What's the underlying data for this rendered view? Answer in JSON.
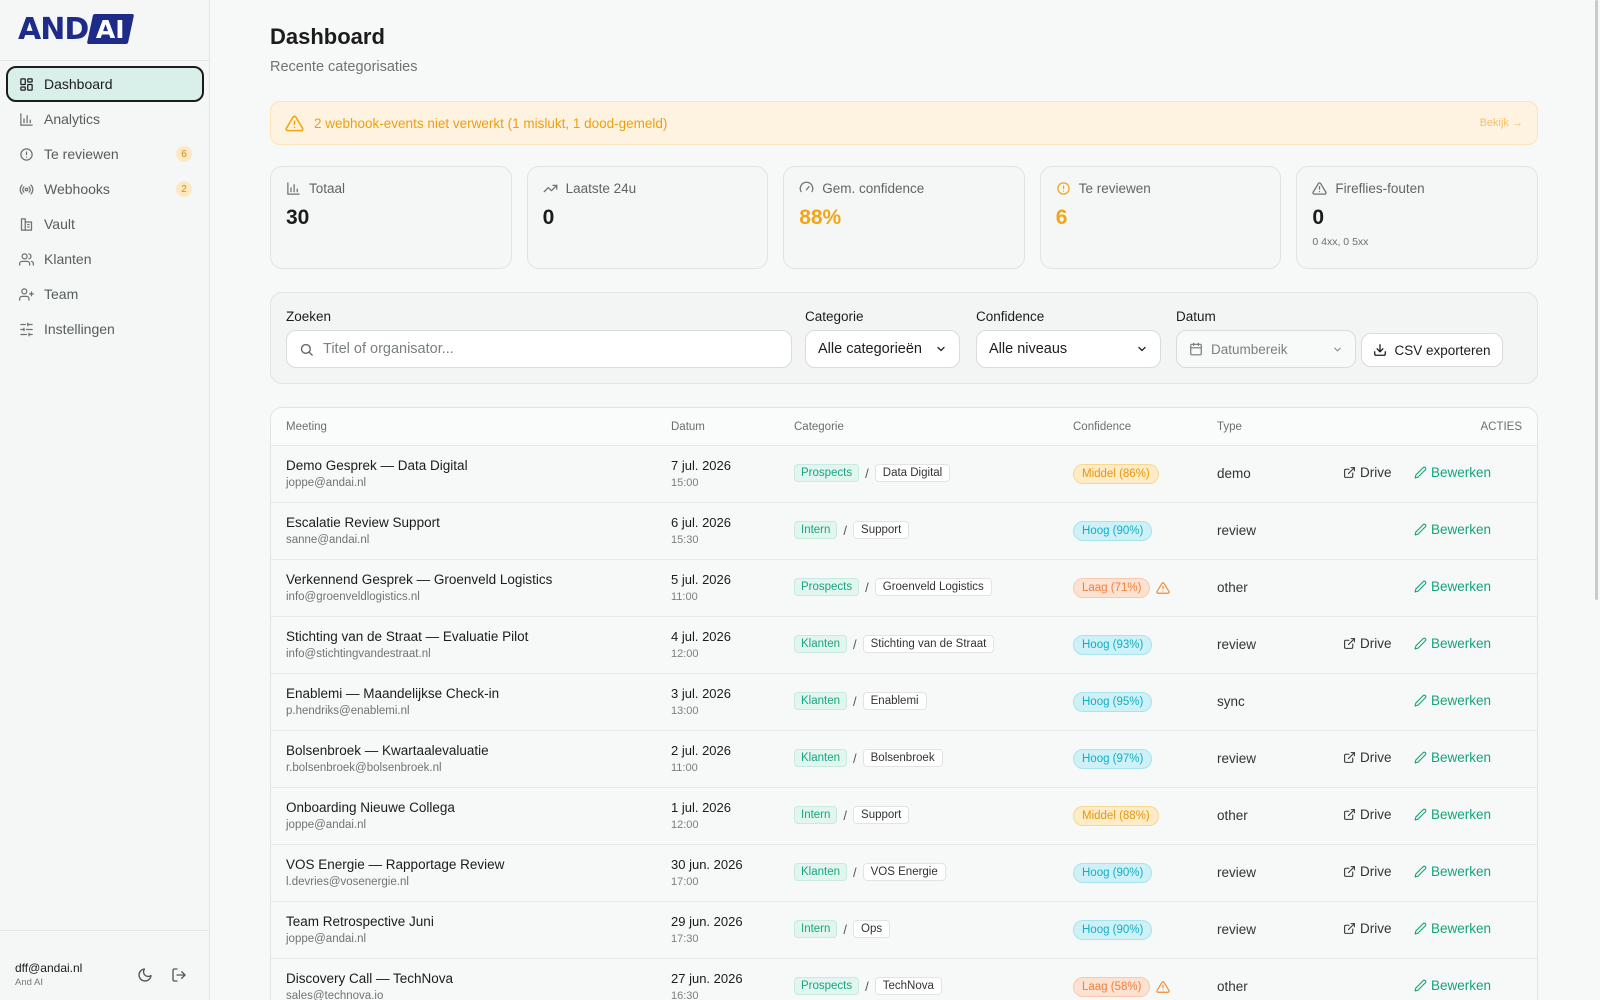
{
  "brand": {
    "and": "AND",
    "ai": "AI"
  },
  "nav": [
    {
      "label": "Dashboard",
      "icon": "grid-icon",
      "active": true,
      "badge": null
    },
    {
      "label": "Analytics",
      "icon": "bar-chart-icon",
      "active": false,
      "badge": null
    },
    {
      "label": "Te reviewen",
      "icon": "alert-circle-icon",
      "active": false,
      "badge": "6"
    },
    {
      "label": "Webhooks",
      "icon": "broadcast-icon",
      "active": false,
      "badge": "2"
    },
    {
      "label": "Vault",
      "icon": "vault-icon",
      "active": false,
      "badge": null
    },
    {
      "label": "Klanten",
      "icon": "users-icon",
      "active": false,
      "badge": null
    },
    {
      "label": "Team",
      "icon": "user-plus-icon",
      "active": false,
      "badge": null
    },
    {
      "label": "Instellingen",
      "icon": "sliders-icon",
      "active": false,
      "badge": null
    }
  ],
  "user": {
    "email": "dff@andai.nl",
    "org": "And AI"
  },
  "page": {
    "title": "Dashboard",
    "subtitle": "Recente categorisaties"
  },
  "alert": {
    "text": "2 webhook-events niet verwerkt (1 mislukt, 1 dood-gemeld)",
    "link": "Bekijk →"
  },
  "stats": [
    {
      "label": "Totaal",
      "value": "30",
      "sub": "",
      "amber": false,
      "icon": "bar-chart-icon"
    },
    {
      "label": "Laatste 24u",
      "value": "0",
      "sub": "",
      "amber": false,
      "icon": "trend-up-icon"
    },
    {
      "label": "Gem. confidence",
      "value": "88%",
      "sub": "",
      "amber": true,
      "icon": "gauge-icon"
    },
    {
      "label": "Te reviewen",
      "value": "6",
      "sub": "",
      "amber": true,
      "icon": "alert-circle-icon"
    },
    {
      "label": "Fireflies-fouten",
      "value": "0",
      "sub": "0 4xx, 0 5xx",
      "amber": false,
      "icon": "warning-triangle-icon"
    }
  ],
  "filters": {
    "search_label": "Zoeken",
    "search_placeholder": "Titel of organisator...",
    "category_label": "Categorie",
    "category_value": "Alle categorieën",
    "confidence_label": "Confidence",
    "confidence_value": "Alle niveaus",
    "date_label": "Datum",
    "date_placeholder": "Datumbereik",
    "csv_label": "CSV exporteren"
  },
  "table": {
    "headers": {
      "meeting": "Meeting",
      "date": "Datum",
      "category": "Categorie",
      "confidence": "Confidence",
      "type": "Type",
      "actions": "ACTIES"
    },
    "drive_label": "Drive",
    "edit_label": "Bewerken",
    "rows": [
      {
        "title": "Demo Gesprek — Data Digital",
        "email": "joppe@andai.nl",
        "date": "7 jul. 2026",
        "time": "15:00",
        "cat": "Prospects",
        "sub": "Data Digital",
        "conf": "Middel (86%)",
        "level": "mid",
        "warn": false,
        "type": "demo",
        "drive": true
      },
      {
        "title": "Escalatie Review Support",
        "email": "sanne@andai.nl",
        "date": "6 jul. 2026",
        "time": "15:30",
        "cat": "Intern",
        "sub": "Support",
        "conf": "Hoog (90%)",
        "level": "high",
        "warn": false,
        "type": "review",
        "drive": false
      },
      {
        "title": "Verkennend Gesprek — Groenveld Logistics",
        "email": "info@groenveldlogistics.nl",
        "date": "5 jul. 2026",
        "time": "11:00",
        "cat": "Prospects",
        "sub": "Groenveld Logistics",
        "conf": "Laag (71%)",
        "level": "low",
        "warn": true,
        "type": "other",
        "drive": false
      },
      {
        "title": "Stichting van de Straat — Evaluatie Pilot",
        "email": "info@stichtingvandestraat.nl",
        "date": "4 jul. 2026",
        "time": "12:00",
        "cat": "Klanten",
        "sub": "Stichting van de Straat",
        "conf": "Hoog (93%)",
        "level": "high",
        "warn": false,
        "type": "review",
        "drive": true
      },
      {
        "title": "Enablemi — Maandelijkse Check-in",
        "email": "p.hendriks@enablemi.nl",
        "date": "3 jul. 2026",
        "time": "13:00",
        "cat": "Klanten",
        "sub": "Enablemi",
        "conf": "Hoog (95%)",
        "level": "high",
        "warn": false,
        "type": "sync",
        "drive": false
      },
      {
        "title": "Bolsenbroek — Kwartaalevaluatie",
        "email": "r.bolsenbroek@bolsenbroek.nl",
        "date": "2 jul. 2026",
        "time": "11:00",
        "cat": "Klanten",
        "sub": "Bolsenbroek",
        "conf": "Hoog (97%)",
        "level": "high",
        "warn": false,
        "type": "review",
        "drive": true
      },
      {
        "title": "Onboarding Nieuwe Collega",
        "email": "joppe@andai.nl",
        "date": "1 jul. 2026",
        "time": "12:00",
        "cat": "Intern",
        "sub": "Support",
        "conf": "Middel (88%)",
        "level": "mid",
        "warn": false,
        "type": "other",
        "drive": true
      },
      {
        "title": "VOS Energie — Rapportage Review",
        "email": "l.devries@vosenergie.nl",
        "date": "30 jun. 2026",
        "time": "17:00",
        "cat": "Klanten",
        "sub": "VOS Energie",
        "conf": "Hoog (90%)",
        "level": "high",
        "warn": false,
        "type": "review",
        "drive": true
      },
      {
        "title": "Team Retrospective Juni",
        "email": "joppe@andai.nl",
        "date": "29 jun. 2026",
        "time": "17:30",
        "cat": "Intern",
        "sub": "Ops",
        "conf": "Hoog (90%)",
        "level": "high",
        "warn": false,
        "type": "review",
        "drive": true
      },
      {
        "title": "Discovery Call — TechNova",
        "email": "sales@technova.io",
        "date": "27 jun. 2026",
        "time": "16:30",
        "cat": "Prospects",
        "sub": "TechNova",
        "conf": "Laag (58%)",
        "level": "low",
        "warn": true,
        "type": "other",
        "drive": false
      }
    ]
  }
}
